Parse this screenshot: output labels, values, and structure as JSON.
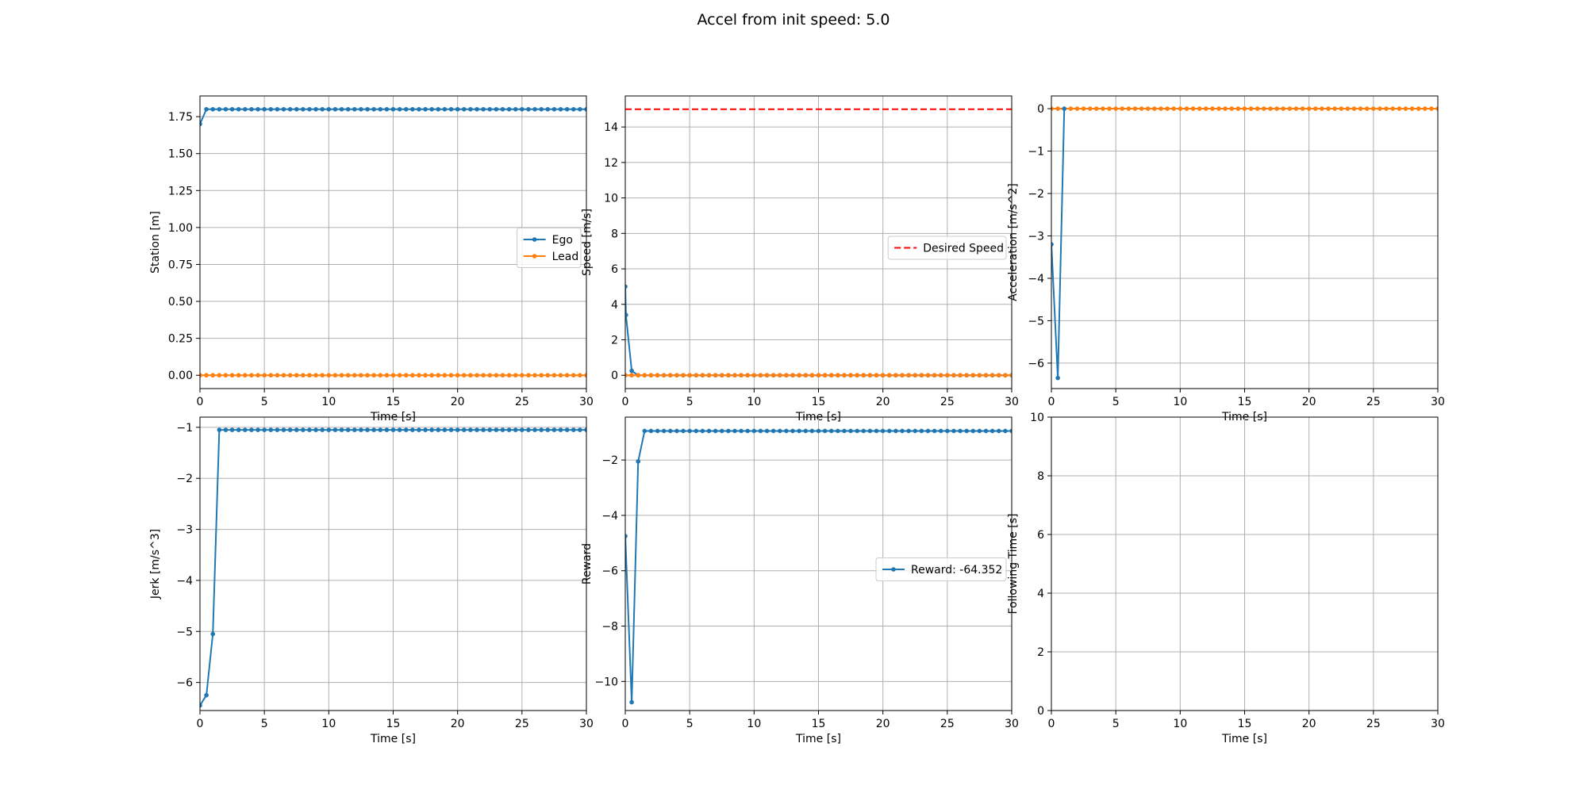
{
  "figure_title": "Accel from init speed: 5.0",
  "colors": {
    "ego": "#1f77b4",
    "lead": "#ff7f0e",
    "desired": "#ff0000",
    "grid": "#b0b0b0"
  },
  "chart_data": [
    {
      "id": "station",
      "type": "line",
      "xlabel": "Time [s]",
      "ylabel": "Station [m]",
      "xlim": [
        0,
        30
      ],
      "ylim": [
        -0.09,
        1.89
      ],
      "xticks": [
        "0",
        "5",
        "10",
        "15",
        "20",
        "25",
        "30"
      ],
      "yticks": [
        "0.00",
        "0.25",
        "0.50",
        "0.75",
        "1.00",
        "1.25",
        "1.50",
        "1.75"
      ],
      "grid": true,
      "legend": {
        "location": "center-right",
        "entries": [
          "Ego",
          "Lead"
        ]
      },
      "series": [
        {
          "name": "Ego",
          "color_key": "ego",
          "marker": true,
          "x_start": 0,
          "x_step": 0.5,
          "count": 61,
          "values_head": [
            1.7
          ],
          "value_rest": 1.8
        },
        {
          "name": "Lead",
          "color_key": "lead",
          "marker": true,
          "x_start": 0,
          "x_step": 0.5,
          "count": 61,
          "values_head": [],
          "value_rest": 0.0
        }
      ]
    },
    {
      "id": "speed",
      "type": "line",
      "xlabel": "Time [s]",
      "ylabel": "Speed [m/s]",
      "xlim": [
        0,
        30
      ],
      "ylim": [
        -0.75,
        15.75
      ],
      "xticks": [
        "0",
        "5",
        "10",
        "15",
        "20",
        "25",
        "30"
      ],
      "yticks": [
        "0",
        "2",
        "4",
        "6",
        "8",
        "10",
        "12",
        "14"
      ],
      "grid": true,
      "legend": {
        "location": "center-right",
        "entries": [
          "Desired Speed"
        ]
      },
      "hlines": [
        {
          "name": "Desired Speed",
          "y": 15,
          "color_key": "desired",
          "dashed": true
        }
      ],
      "series": [
        {
          "name": "Ego",
          "color_key": "ego",
          "marker": true,
          "x_start": 0,
          "x_step": 0.5,
          "count": 61,
          "explicit_points": [
            [
              0,
              5.0
            ],
            [
              0.05,
              3.4
            ],
            [
              0.5,
              0.25
            ],
            [
              1.0,
              0.0
            ]
          ],
          "value_rest": 0.0
        },
        {
          "name": "Lead",
          "color_key": "lead",
          "marker": true,
          "x_start": 0,
          "x_step": 0.5,
          "count": 61,
          "values_head": [],
          "value_rest": 0.0
        }
      ]
    },
    {
      "id": "acceleration",
      "type": "line",
      "xlabel": "Time [s]",
      "ylabel": "Acceleration [m/s^2]",
      "xlim": [
        0,
        30
      ],
      "ylim": [
        -6.6,
        0.3
      ],
      "xticks": [
        "0",
        "5",
        "10",
        "15",
        "20",
        "25",
        "30"
      ],
      "yticks": [
        "−6",
        "−5",
        "−4",
        "−3",
        "−2",
        "−1",
        "0"
      ],
      "ytick_values": [
        -6,
        -5,
        -4,
        -3,
        -2,
        -1,
        0
      ],
      "grid": true,
      "series": [
        {
          "name": "Lead",
          "color_key": "lead",
          "marker": true,
          "x_start": 0,
          "x_step": 0.5,
          "count": 61,
          "values_head": [],
          "value_rest": 0.0
        },
        {
          "name": "Ego",
          "color_key": "ego",
          "marker": true,
          "sparse": true,
          "explicit_points": [
            [
              0,
              -3.2
            ],
            [
              0.5,
              -6.35
            ],
            [
              1.0,
              0.0
            ]
          ]
        }
      ]
    },
    {
      "id": "jerk",
      "type": "line",
      "xlabel": "Time [s]",
      "ylabel": "Jerk [m/s^3]",
      "xlim": [
        0,
        30
      ],
      "ylim": [
        -6.55,
        -0.8
      ],
      "xticks": [
        "0",
        "5",
        "10",
        "15",
        "20",
        "25",
        "30"
      ],
      "yticks": [
        "−6",
        "−5",
        "−4",
        "−3",
        "−2",
        "−1"
      ],
      "ytick_values": [
        -6,
        -5,
        -4,
        -3,
        -2,
        -1
      ],
      "grid": true,
      "series": [
        {
          "name": "Ego",
          "color_key": "ego",
          "marker": true,
          "x_start": 0,
          "x_step": 0.5,
          "count": 61,
          "explicit_points": [
            [
              0,
              -6.45
            ],
            [
              0.5,
              -6.25
            ],
            [
              1.0,
              -5.05
            ],
            [
              1.5,
              -1.05
            ]
          ],
          "value_rest": -1.05
        }
      ]
    },
    {
      "id": "reward",
      "type": "line",
      "xlabel": "Time [s]",
      "ylabel": "Reward",
      "xlim": [
        0,
        30
      ],
      "ylim": [
        -11.05,
        -0.45
      ],
      "xticks": [
        "0",
        "5",
        "10",
        "15",
        "20",
        "25",
        "30"
      ],
      "yticks": [
        "−10",
        "−8",
        "−6",
        "−4",
        "−2"
      ],
      "ytick_values": [
        -10,
        -8,
        -6,
        -4,
        -2
      ],
      "grid": true,
      "legend": {
        "location": "center-right",
        "entries": [
          "Reward: -64.352"
        ]
      },
      "series": [
        {
          "name": "Reward: -64.352",
          "color_key": "ego",
          "marker": true,
          "x_start": 0,
          "x_step": 0.5,
          "count": 61,
          "explicit_points": [
            [
              0,
              -4.75
            ],
            [
              0.5,
              -10.75
            ],
            [
              1.0,
              -2.05
            ],
            [
              1.5,
              -0.95
            ]
          ],
          "value_rest": -0.95
        }
      ]
    },
    {
      "id": "following",
      "type": "line",
      "xlabel": "Time [s]",
      "ylabel": "Following Time [s]",
      "xlim": [
        0,
        30
      ],
      "ylim": [
        0,
        10
      ],
      "xticks": [
        "0",
        "5",
        "10",
        "15",
        "20",
        "25",
        "30"
      ],
      "yticks": [
        "0",
        "2",
        "4",
        "6",
        "8",
        "10"
      ],
      "grid": true,
      "series": []
    }
  ]
}
